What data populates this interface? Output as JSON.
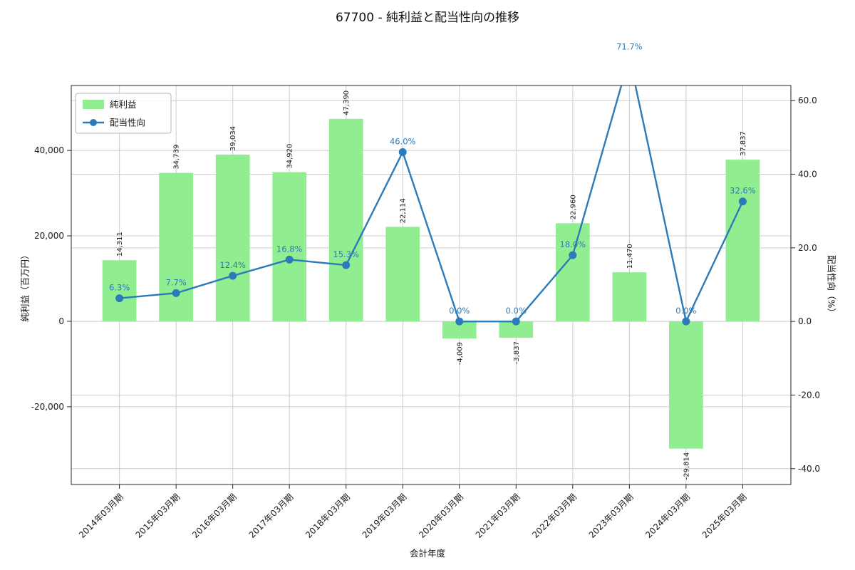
{
  "chart_data": {
    "type": "combo",
    "title": "67700 - 純利益と配当性向の推移",
    "xlabel": "会計年度",
    "ylabel_left": "純利益（百万円）",
    "ylabel_right": "配当性向（%）",
    "categories": [
      "2014年03月期",
      "2015年03月期",
      "2016年03月期",
      "2017年03月期",
      "2018年03月期",
      "2019年03月期",
      "2020年03月期",
      "2021年03月期",
      "2022年03月期",
      "2023年03月期",
      "2024年03月期",
      "2025年03月期"
    ],
    "series": [
      {
        "name": "純利益",
        "type": "bar",
        "axis": "left",
        "values": [
          14311,
          34739,
          39034,
          34920,
          47390,
          22114,
          -4009,
          -3837,
          22960,
          11470,
          -29814,
          37837
        ],
        "labels": [
          "14,311",
          "34,739",
          "39,034",
          "34,920",
          "47,390",
          "22,114",
          "-4,009",
          "-3,837",
          "22,960",
          "11,470",
          "-29,814",
          "37,837"
        ]
      },
      {
        "name": "配当性向",
        "type": "line",
        "axis": "right",
        "values": [
          6.3,
          7.7,
          12.4,
          16.8,
          15.3,
          46.0,
          0.0,
          0.0,
          18.0,
          71.7,
          0.0,
          32.6
        ],
        "labels": [
          "6.3%",
          "7.7%",
          "12.4%",
          "16.8%",
          "15.3%",
          "46.0%",
          "0.0%",
          "0.0%",
          "18.0%",
          "71.7%",
          "0.0%",
          "32.6%"
        ]
      }
    ],
    "left_axis": {
      "lim": [
        -38200,
        55200
      ],
      "ticks": [
        -20000,
        0,
        20000,
        40000
      ],
      "tick_labels": [
        "-20,000",
        "0",
        "20,000",
        "40,000"
      ]
    },
    "right_axis": {
      "lim": [
        -44.3,
        64.1
      ],
      "ticks": [
        -40,
        -20,
        0,
        20,
        40,
        60
      ],
      "tick_labels": [
        "-40.0",
        "-20.0",
        "0.0",
        "20.0",
        "40.0",
        "60.0"
      ]
    },
    "grid": true,
    "legend": {
      "position": "top-left",
      "entries": [
        "純利益",
        "配当性向"
      ]
    },
    "colors": {
      "bar": "#90ee90",
      "line": "#2b7bba",
      "grid": "#cccccc",
      "spine": "#262626",
      "text": "#1a1a1a"
    }
  }
}
